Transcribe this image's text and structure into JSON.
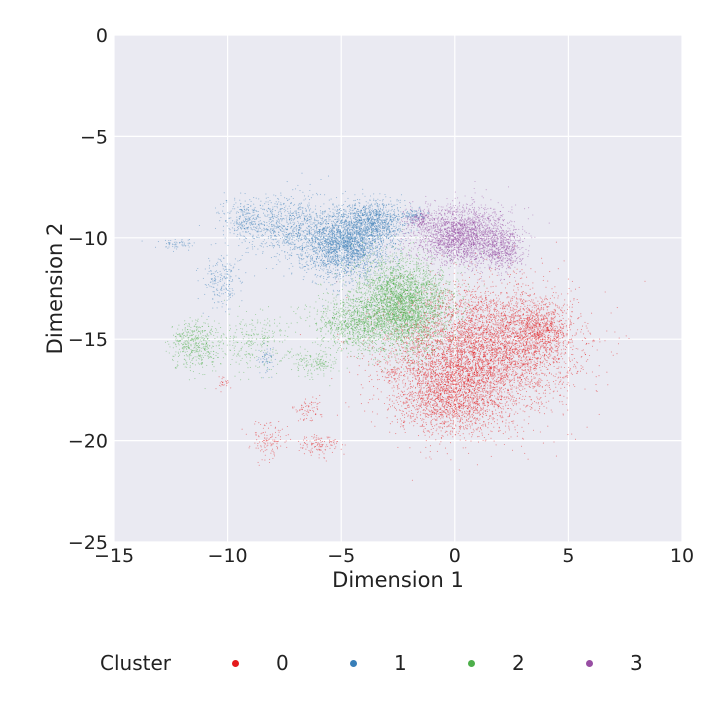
{
  "chart_data": {
    "type": "scatter",
    "xlabel": "Dimension 1",
    "ylabel": "Dimension 2",
    "xlim": [
      -15,
      10
    ],
    "ylim": [
      -25,
      0
    ],
    "xticks": [
      "−15",
      "−10",
      "−5",
      "0",
      "5",
      "10"
    ],
    "yticks": [
      "0",
      "−5",
      "−10",
      "−15",
      "−20",
      "−25"
    ],
    "xtick_values": [
      -15,
      -10,
      -5,
      0,
      5,
      10
    ],
    "ytick_values": [
      0,
      -5,
      -10,
      -15,
      -20,
      -25
    ],
    "grid": true,
    "background": "#eaeaf2",
    "legend": {
      "title": "Cluster",
      "position": "bottom",
      "entries": [
        {
          "label": "0",
          "color": "#e41a1c"
        },
        {
          "label": "1",
          "color": "#377eb8"
        },
        {
          "label": "2",
          "color": "#4daf4a"
        },
        {
          "label": "3",
          "color": "#984ea3"
        }
      ]
    },
    "series": [
      {
        "name": "0",
        "color": "#e41a1c",
        "blobs": [
          {
            "cx": 1.2,
            "cy": -15.5,
            "rx": 3.6,
            "ry": 2.8,
            "n": 5200
          },
          {
            "cx": -0.2,
            "cy": -17.8,
            "rx": 2.2,
            "ry": 1.8,
            "n": 1800
          },
          {
            "cx": 3.8,
            "cy": -14.5,
            "rx": 1.2,
            "ry": 1.2,
            "n": 700
          },
          {
            "cx": -8.2,
            "cy": -20.0,
            "rx": 0.8,
            "ry": 0.9,
            "n": 120
          },
          {
            "cx": -6.0,
            "cy": -20.2,
            "rx": 0.8,
            "ry": 0.5,
            "n": 120
          },
          {
            "cx": -6.5,
            "cy": -18.5,
            "rx": 0.6,
            "ry": 0.5,
            "n": 70
          },
          {
            "cx": -10.2,
            "cy": -17.2,
            "rx": 0.3,
            "ry": 0.3,
            "n": 25
          },
          {
            "cx": -2.8,
            "cy": -16.6,
            "rx": 0.5,
            "ry": 0.4,
            "n": 40
          }
        ]
      },
      {
        "name": "1",
        "color": "#377eb8",
        "blobs": [
          {
            "cx": -4.8,
            "cy": -10.3,
            "rx": 1.7,
            "ry": 1.5,
            "n": 2600
          },
          {
            "cx": -3.5,
            "cy": -9.2,
            "rx": 1.3,
            "ry": 0.9,
            "n": 900
          },
          {
            "cx": -7.3,
            "cy": -9.5,
            "rx": 1.5,
            "ry": 1.5,
            "n": 700
          },
          {
            "cx": -9.2,
            "cy": -9.2,
            "rx": 1.0,
            "ry": 1.0,
            "n": 300
          },
          {
            "cx": -10.2,
            "cy": -12.2,
            "rx": 0.8,
            "ry": 1.2,
            "n": 200
          },
          {
            "cx": -8.3,
            "cy": -16.0,
            "rx": 0.3,
            "ry": 0.6,
            "n": 60
          },
          {
            "cx": -12.2,
            "cy": -10.3,
            "rx": 0.8,
            "ry": 0.25,
            "n": 60
          },
          {
            "cx": -1.8,
            "cy": -8.9,
            "rx": 0.5,
            "ry": 0.3,
            "n": 90
          }
        ]
      },
      {
        "name": "2",
        "color": "#4daf4a",
        "blobs": [
          {
            "cx": -2.3,
            "cy": -13.3,
            "rx": 1.9,
            "ry": 2.0,
            "n": 3600
          },
          {
            "cx": -4.5,
            "cy": -14.2,
            "rx": 1.6,
            "ry": 1.3,
            "n": 900
          },
          {
            "cx": -11.4,
            "cy": -15.3,
            "rx": 1.0,
            "ry": 1.1,
            "n": 450
          },
          {
            "cx": -9.0,
            "cy": -15.2,
            "rx": 1.5,
            "ry": 1.3,
            "n": 280
          },
          {
            "cx": -6.2,
            "cy": -16.2,
            "rx": 0.9,
            "ry": 0.6,
            "n": 160
          }
        ]
      },
      {
        "name": "3",
        "color": "#984ea3",
        "blobs": [
          {
            "cx": 0.3,
            "cy": -9.9,
            "rx": 1.9,
            "ry": 1.3,
            "n": 2400
          },
          {
            "cx": 2.1,
            "cy": -10.6,
            "rx": 0.8,
            "ry": 0.9,
            "n": 500
          },
          {
            "cx": -1.6,
            "cy": -9.1,
            "rx": 0.5,
            "ry": 0.5,
            "n": 150
          }
        ]
      }
    ]
  }
}
